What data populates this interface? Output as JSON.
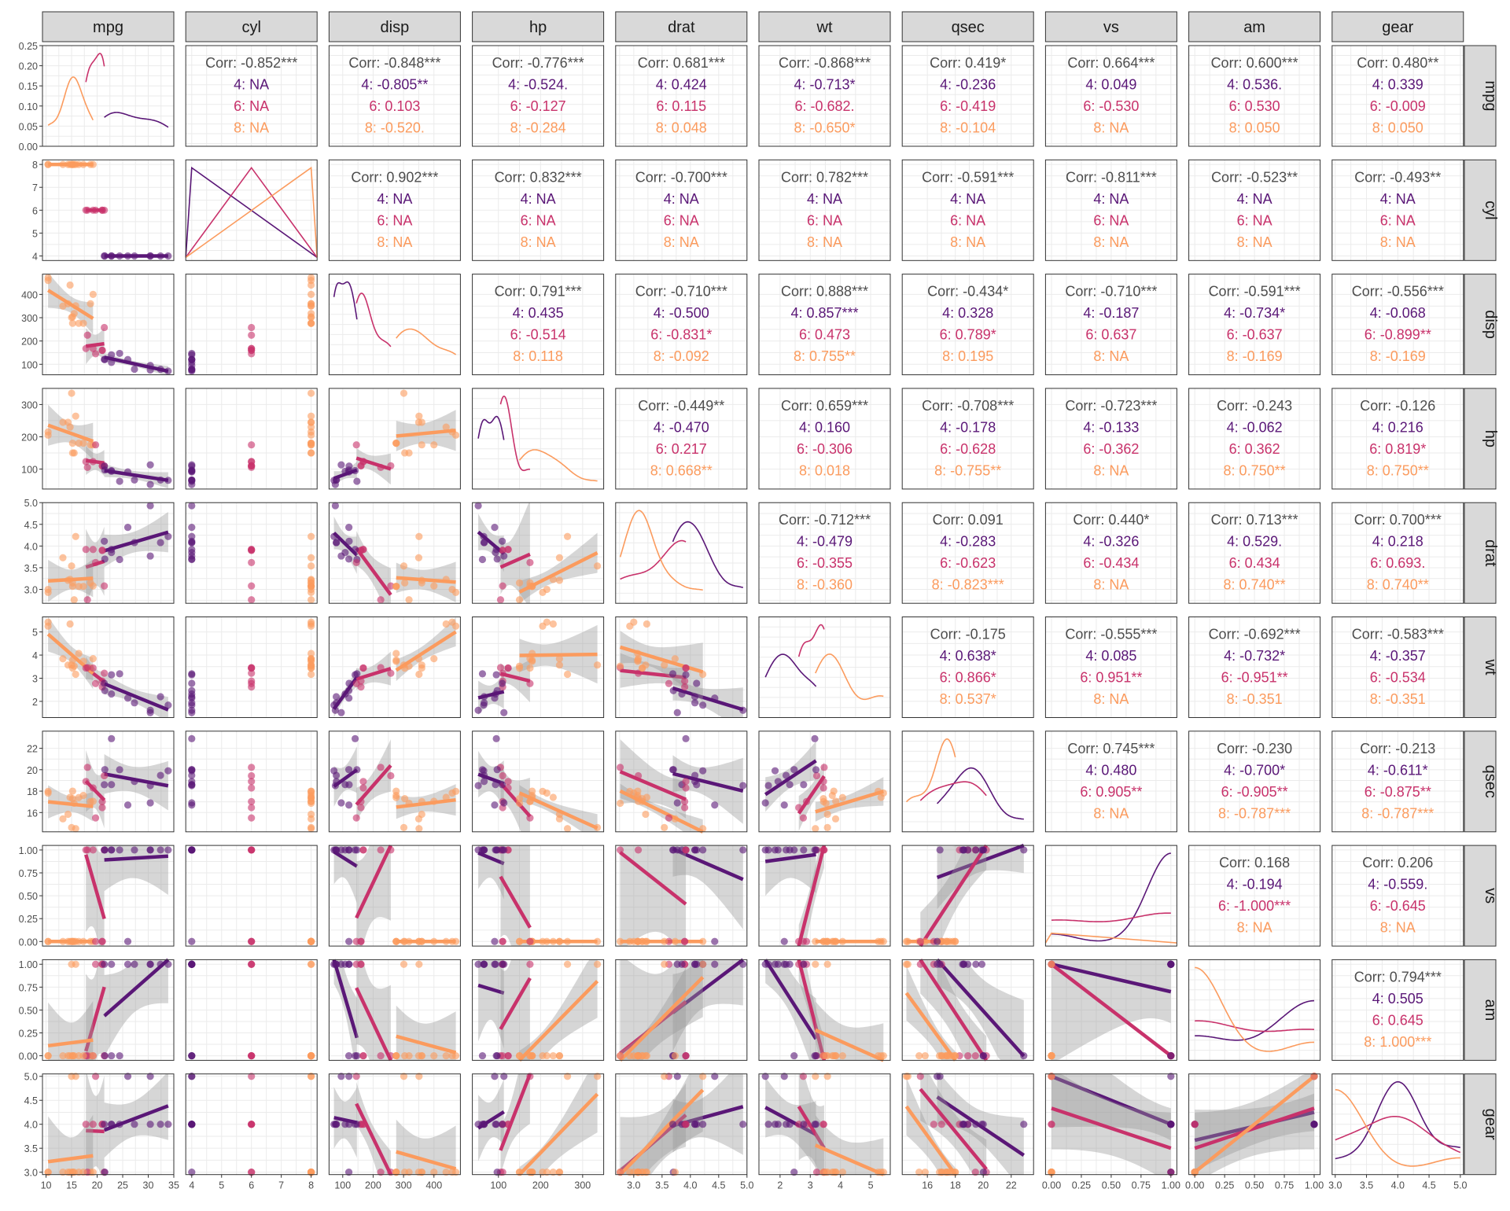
{
  "colors": {
    "g4": "#5a1777",
    "g6": "#c8326b",
    "g8": "#fb9b5e",
    "strip": "#d9d9d9",
    "grid": "#ebebeb",
    "text": "#4d4d4d",
    "ribbon": "#999999"
  },
  "chart_data": {
    "type": "scatter",
    "subtype": "pairs-matrix (ggpairs)",
    "variables": [
      "mpg",
      "cyl",
      "disp",
      "hp",
      "drat",
      "wt",
      "qsec",
      "vs",
      "am",
      "gear"
    ],
    "groups": [
      "4",
      "6",
      "8"
    ],
    "group_colors": [
      "#5a1777",
      "#c8326b",
      "#fb9b5e"
    ],
    "axes": {
      "mpg": {
        "range": [
          9.3,
          35.0
        ],
        "ticks": [
          10,
          15,
          20,
          25,
          30,
          35
        ]
      },
      "cyl": {
        "range": [
          3.8,
          8.2
        ],
        "ticks": [
          4,
          5,
          6,
          7,
          8
        ]
      },
      "disp": {
        "range": [
          55,
          487
        ],
        "ticks": [
          100,
          200,
          300,
          400
        ],
        "tick_labels": [
          "100",
          "200",
          "300",
          "400"
        ]
      },
      "hp": {
        "range": [
          38,
          350
        ],
        "ticks": [
          100,
          200,
          300
        ]
      },
      "drat": {
        "range": [
          2.68,
          5.0
        ],
        "ticks": [
          2.5,
          3.0,
          3.5,
          4.0,
          4.5,
          5.0
        ],
        "tick_labels": [
          "",
          "3.0",
          "3.5",
          "4.0",
          "4.5",
          "5.0"
        ]
      },
      "wt": {
        "range": [
          1.3,
          5.65
        ],
        "ticks": [
          2,
          3,
          4,
          5
        ]
      },
      "qsec": {
        "range": [
          14.2,
          23.6
        ],
        "ticks": [
          16,
          18,
          20,
          22
        ]
      },
      "vs": {
        "range": [
          -0.05,
          1.05
        ],
        "ticks": [
          0,
          0.25,
          0.5,
          0.75,
          1
        ],
        "tick_labels": [
          "0.00",
          "0.25",
          "0.50",
          "0.75",
          "1.00"
        ]
      },
      "am": {
        "range": [
          -0.05,
          1.05
        ],
        "ticks": [
          0,
          0.25,
          0.5,
          0.75,
          1
        ],
        "tick_labels": [
          "0.00",
          "0.25",
          "0.50",
          "0.75",
          "1.00"
        ]
      },
      "gear": {
        "range": [
          2.95,
          5.05
        ],
        "ticks": [
          3,
          3.5,
          4,
          4.5,
          5
        ],
        "tick_labels": [
          "3.0",
          "3.5",
          "4.0",
          "4.5",
          "5.0"
        ]
      }
    },
    "density_axis": {
      "range": [
        0,
        0.25
      ],
      "ticks": [
        0,
        0.05,
        0.1,
        0.15,
        0.2,
        0.25
      ],
      "tick_labels": [
        "0.00",
        "0.05",
        "0.10",
        "0.15",
        "0.20",
        "0.25"
      ]
    },
    "correlations": {
      "mpg|cyl": [
        "Corr: -0.852***",
        "4:  NA",
        "6:  NA",
        "8:  NA"
      ],
      "mpg|disp": [
        "Corr: -0.848***",
        "4: -0.805**",
        "6: 0.103",
        "8: -0.520."
      ],
      "mpg|hp": [
        "Corr: -0.776***",
        "4: -0.524.",
        "6: -0.127",
        "8: -0.284"
      ],
      "mpg|drat": [
        "Corr: 0.681***",
        "4: 0.424",
        "6: 0.115",
        "8: 0.048"
      ],
      "mpg|wt": [
        "Corr: -0.868***",
        "4: -0.713*",
        "6: -0.682.",
        "8: -0.650*"
      ],
      "mpg|qsec": [
        "Corr: 0.419*",
        "4: -0.236",
        "6: -0.419",
        "8: -0.104"
      ],
      "mpg|vs": [
        "Corr: 0.664***",
        "4: 0.049",
        "6: -0.530",
        "8:  NA"
      ],
      "mpg|am": [
        "Corr: 0.600***",
        "4: 0.536.",
        "6: 0.530",
        "8: 0.050"
      ],
      "mpg|gear": [
        "Corr: 0.480**",
        "4: 0.339",
        "6: -0.009",
        "8: 0.050"
      ],
      "cyl|disp": [
        "Corr: 0.902***",
        "4:  NA",
        "6:  NA",
        "8:  NA"
      ],
      "cyl|hp": [
        "Corr: 0.832***",
        "4:  NA",
        "6:  NA",
        "8:  NA"
      ],
      "cyl|drat": [
        "Corr: -0.700***",
        "4:  NA",
        "6:  NA",
        "8:  NA"
      ],
      "cyl|wt": [
        "Corr: 0.782***",
        "4:  NA",
        "6:  NA",
        "8:  NA"
      ],
      "cyl|qsec": [
        "Corr: -0.591***",
        "4:  NA",
        "6:  NA",
        "8:  NA"
      ],
      "cyl|vs": [
        "Corr: -0.811***",
        "4:  NA",
        "6:  NA",
        "8:  NA"
      ],
      "cyl|am": [
        "Corr: -0.523**",
        "4:  NA",
        "6:  NA",
        "8:  NA"
      ],
      "cyl|gear": [
        "Corr: -0.493**",
        "4:  NA",
        "6:  NA",
        "8:  NA"
      ],
      "disp|hp": [
        "Corr: 0.791***",
        "4: 0.435",
        "6: -0.514",
        "8: 0.118"
      ],
      "disp|drat": [
        "Corr: -0.710***",
        "4: -0.500",
        "6: -0.831*",
        "8: -0.092"
      ],
      "disp|wt": [
        "Corr: 0.888***",
        "4: 0.857***",
        "6: 0.473",
        "8: 0.755**"
      ],
      "disp|qsec": [
        "Corr: -0.434*",
        "4: 0.328",
        "6: 0.789*",
        "8: 0.195"
      ],
      "disp|vs": [
        "Corr: -0.710***",
        "4: -0.187",
        "6: 0.637",
        "8:  NA"
      ],
      "disp|am": [
        "Corr: -0.591***",
        "4: -0.734*",
        "6: -0.637",
        "8: -0.169"
      ],
      "disp|gear": [
        "Corr: -0.556***",
        "4: -0.068",
        "6: -0.899**",
        "8: -0.169"
      ],
      "hp|drat": [
        "Corr: -0.449**",
        "4: -0.470",
        "6: 0.217",
        "8: 0.668**"
      ],
      "hp|wt": [
        "Corr: 0.659***",
        "4: 0.160",
        "6: -0.306",
        "8: 0.018"
      ],
      "hp|qsec": [
        "Corr: -0.708***",
        "4: -0.178",
        "6: -0.628",
        "8: -0.755**"
      ],
      "hp|vs": [
        "Corr: -0.723***",
        "4: -0.133",
        "6: -0.362",
        "8:  NA"
      ],
      "hp|am": [
        "Corr: -0.243",
        "4: -0.062",
        "6: 0.362",
        "8: 0.750**"
      ],
      "hp|gear": [
        "Corr: -0.126",
        "4: 0.216",
        "6: 0.819*",
        "8: 0.750**"
      ],
      "drat|wt": [
        "Corr: -0.712***",
        "4: -0.479",
        "6: -0.355",
        "8: -0.360"
      ],
      "drat|qsec": [
        "Corr: 0.091",
        "4: -0.283",
        "6: -0.623",
        "8: -0.823***"
      ],
      "drat|vs": [
        "Corr: 0.440*",
        "4: -0.326",
        "6: -0.434",
        "8:  NA"
      ],
      "drat|am": [
        "Corr: 0.713***",
        "4: 0.529.",
        "6: 0.434",
        "8: 0.740**"
      ],
      "drat|gear": [
        "Corr: 0.700***",
        "4: 0.218",
        "6: 0.693.",
        "8: 0.740**"
      ],
      "wt|qsec": [
        "Corr: -0.175",
        "4: 0.638*",
        "6: 0.866*",
        "8: 0.537*"
      ],
      "wt|vs": [
        "Corr: -0.555***",
        "4: 0.085",
        "6: 0.951**",
        "8:  NA"
      ],
      "wt|am": [
        "Corr: -0.692***",
        "4: -0.732*",
        "6: -0.951**",
        "8: -0.351"
      ],
      "wt|gear": [
        "Corr: -0.583***",
        "4: -0.357",
        "6: -0.534",
        "8: -0.351"
      ],
      "qsec|vs": [
        "Corr: 0.745***",
        "4: 0.480",
        "6: 0.905**",
        "8:  NA"
      ],
      "qsec|am": [
        "Corr: -0.230",
        "4: -0.700*",
        "6: -0.905**",
        "8: -0.787***"
      ],
      "qsec|gear": [
        "Corr: -0.213",
        "4: -0.611*",
        "6: -0.875**",
        "8: -0.787***"
      ],
      "vs|am": [
        "Corr: 0.168",
        "4: -0.194",
        "6: -1.000***",
        "8:  NA"
      ],
      "vs|gear": [
        "Corr: 0.206",
        "4: -0.559.",
        "6: -0.645",
        "8:  NA"
      ],
      "am|gear": [
        "Corr: 0.794***",
        "4: 0.505",
        "6: 0.645",
        "8: 1.000***"
      ]
    },
    "observations": [
      {
        "cyl": 6,
        "mpg": 21.0,
        "disp": 160.0,
        "hp": 110,
        "drat": 3.9,
        "wt": 2.62,
        "qsec": 16.46,
        "vs": 0,
        "am": 1,
        "gear": 4
      },
      {
        "cyl": 6,
        "mpg": 21.0,
        "disp": 160.0,
        "hp": 110,
        "drat": 3.9,
        "wt": 2.875,
        "qsec": 17.02,
        "vs": 0,
        "am": 1,
        "gear": 4
      },
      {
        "cyl": 4,
        "mpg": 22.8,
        "disp": 108.0,
        "hp": 93,
        "drat": 3.85,
        "wt": 2.32,
        "qsec": 18.61,
        "vs": 1,
        "am": 1,
        "gear": 4
      },
      {
        "cyl": 6,
        "mpg": 21.4,
        "disp": 258.0,
        "hp": 110,
        "drat": 3.08,
        "wt": 3.215,
        "qsec": 19.44,
        "vs": 1,
        "am": 0,
        "gear": 3
      },
      {
        "cyl": 8,
        "mpg": 18.7,
        "disp": 360.0,
        "hp": 175,
        "drat": 3.15,
        "wt": 3.44,
        "qsec": 17.02,
        "vs": 0,
        "am": 0,
        "gear": 3
      },
      {
        "cyl": 6,
        "mpg": 18.1,
        "disp": 225.0,
        "hp": 105,
        "drat": 2.76,
        "wt": 3.46,
        "qsec": 20.22,
        "vs": 1,
        "am": 0,
        "gear": 3
      },
      {
        "cyl": 8,
        "mpg": 14.3,
        "disp": 360.0,
        "hp": 245,
        "drat": 3.21,
        "wt": 3.57,
        "qsec": 15.84,
        "vs": 0,
        "am": 0,
        "gear": 3
      },
      {
        "cyl": 4,
        "mpg": 24.4,
        "disp": 146.7,
        "hp": 62,
        "drat": 3.69,
        "wt": 3.19,
        "qsec": 20.0,
        "vs": 1,
        "am": 0,
        "gear": 4
      },
      {
        "cyl": 4,
        "mpg": 22.8,
        "disp": 140.8,
        "hp": 95,
        "drat": 3.92,
        "wt": 3.15,
        "qsec": 22.9,
        "vs": 1,
        "am": 0,
        "gear": 4
      },
      {
        "cyl": 6,
        "mpg": 19.2,
        "disp": 167.6,
        "hp": 123,
        "drat": 3.92,
        "wt": 3.44,
        "qsec": 18.3,
        "vs": 1,
        "am": 0,
        "gear": 4
      },
      {
        "cyl": 6,
        "mpg": 17.8,
        "disp": 167.6,
        "hp": 123,
        "drat": 3.92,
        "wt": 3.44,
        "qsec": 18.9,
        "vs": 1,
        "am": 0,
        "gear": 4
      },
      {
        "cyl": 8,
        "mpg": 16.4,
        "disp": 275.8,
        "hp": 180,
        "drat": 3.07,
        "wt": 4.07,
        "qsec": 17.4,
        "vs": 0,
        "am": 0,
        "gear": 3
      },
      {
        "cyl": 8,
        "mpg": 17.3,
        "disp": 275.8,
        "hp": 180,
        "drat": 3.07,
        "wt": 3.73,
        "qsec": 17.6,
        "vs": 0,
        "am": 0,
        "gear": 3
      },
      {
        "cyl": 8,
        "mpg": 15.2,
        "disp": 275.8,
        "hp": 180,
        "drat": 3.07,
        "wt": 3.78,
        "qsec": 18.0,
        "vs": 0,
        "am": 0,
        "gear": 3
      },
      {
        "cyl": 8,
        "mpg": 10.4,
        "disp": 472.0,
        "hp": 205,
        "drat": 2.93,
        "wt": 5.25,
        "qsec": 17.98,
        "vs": 0,
        "am": 0,
        "gear": 3
      },
      {
        "cyl": 8,
        "mpg": 10.4,
        "disp": 460.0,
        "hp": 215,
        "drat": 3.0,
        "wt": 5.424,
        "qsec": 17.82,
        "vs": 0,
        "am": 0,
        "gear": 3
      },
      {
        "cyl": 8,
        "mpg": 14.7,
        "disp": 440.0,
        "hp": 230,
        "drat": 3.23,
        "wt": 5.345,
        "qsec": 17.42,
        "vs": 0,
        "am": 0,
        "gear": 3
      },
      {
        "cyl": 4,
        "mpg": 32.4,
        "disp": 78.7,
        "hp": 66,
        "drat": 4.08,
        "wt": 2.2,
        "qsec": 19.47,
        "vs": 1,
        "am": 1,
        "gear": 4
      },
      {
        "cyl": 4,
        "mpg": 30.4,
        "disp": 75.7,
        "hp": 52,
        "drat": 4.93,
        "wt": 1.615,
        "qsec": 18.52,
        "vs": 1,
        "am": 1,
        "gear": 4
      },
      {
        "cyl": 4,
        "mpg": 33.9,
        "disp": 71.1,
        "hp": 65,
        "drat": 4.22,
        "wt": 1.835,
        "qsec": 19.9,
        "vs": 1,
        "am": 1,
        "gear": 4
      },
      {
        "cyl": 4,
        "mpg": 21.5,
        "disp": 120.1,
        "hp": 97,
        "drat": 3.7,
        "wt": 2.465,
        "qsec": 20.01,
        "vs": 1,
        "am": 0,
        "gear": 3
      },
      {
        "cyl": 8,
        "mpg": 15.5,
        "disp": 318.0,
        "hp": 150,
        "drat": 2.76,
        "wt": 3.52,
        "qsec": 16.87,
        "vs": 0,
        "am": 0,
        "gear": 3
      },
      {
        "cyl": 8,
        "mpg": 15.2,
        "disp": 304.0,
        "hp": 150,
        "drat": 3.15,
        "wt": 3.435,
        "qsec": 17.3,
        "vs": 0,
        "am": 0,
        "gear": 3
      },
      {
        "cyl": 8,
        "mpg": 13.3,
        "disp": 350.0,
        "hp": 245,
        "drat": 3.73,
        "wt": 3.84,
        "qsec": 15.41,
        "vs": 0,
        "am": 0,
        "gear": 3
      },
      {
        "cyl": 8,
        "mpg": 19.2,
        "disp": 400.0,
        "hp": 175,
        "drat": 3.08,
        "wt": 3.845,
        "qsec": 17.05,
        "vs": 0,
        "am": 0,
        "gear": 3
      },
      {
        "cyl": 4,
        "mpg": 27.3,
        "disp": 79.0,
        "hp": 66,
        "drat": 4.08,
        "wt": 1.935,
        "qsec": 18.9,
        "vs": 1,
        "am": 1,
        "gear": 4
      },
      {
        "cyl": 4,
        "mpg": 26.0,
        "disp": 120.3,
        "hp": 91,
        "drat": 4.43,
        "wt": 2.14,
        "qsec": 16.7,
        "vs": 0,
        "am": 1,
        "gear": 5
      },
      {
        "cyl": 4,
        "mpg": 30.4,
        "disp": 95.1,
        "hp": 113,
        "drat": 3.77,
        "wt": 1.513,
        "qsec": 16.9,
        "vs": 1,
        "am": 1,
        "gear": 5
      },
      {
        "cyl": 8,
        "mpg": 15.8,
        "disp": 351.0,
        "hp": 264,
        "drat": 4.22,
        "wt": 3.17,
        "qsec": 14.5,
        "vs": 0,
        "am": 1,
        "gear": 5
      },
      {
        "cyl": 6,
        "mpg": 19.7,
        "disp": 145.0,
        "hp": 175,
        "drat": 3.62,
        "wt": 2.77,
        "qsec": 15.5,
        "vs": 0,
        "am": 1,
        "gear": 5
      },
      {
        "cyl": 8,
        "mpg": 15.0,
        "disp": 301.0,
        "hp": 335,
        "drat": 3.54,
        "wt": 3.57,
        "qsec": 14.6,
        "vs": 0,
        "am": 1,
        "gear": 5
      },
      {
        "cyl": 4,
        "mpg": 21.4,
        "disp": 121.0,
        "hp": 109,
        "drat": 4.11,
        "wt": 2.78,
        "qsec": 18.6,
        "vs": 1,
        "am": 1,
        "gear": 4
      }
    ]
  }
}
